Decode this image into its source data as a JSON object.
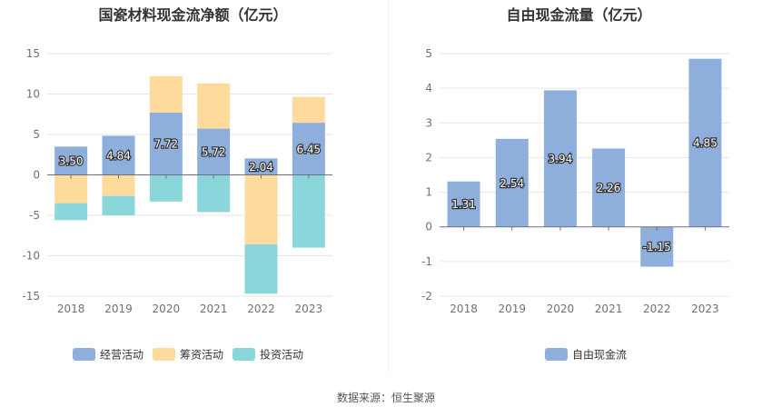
{
  "source_text": "数据来源：恒生聚源",
  "chart_data": [
    {
      "type": "bar",
      "stacked": true,
      "title": "国瓷材料现金流净额（亿元）",
      "categories": [
        "2018",
        "2019",
        "2020",
        "2021",
        "2022",
        "2023"
      ],
      "ylim": [
        -15,
        15
      ],
      "yticks": [
        15,
        10,
        5,
        0,
        -5,
        -10,
        -15
      ],
      "grid": true,
      "legend_position": "bottom",
      "series": [
        {
          "name": "经营活动",
          "color": "#8eaedb",
          "values": [
            3.5,
            4.84,
            7.72,
            5.72,
            2.04,
            6.45
          ],
          "labels": [
            "3.50",
            "4.84",
            "7.72",
            "5.72",
            "2.04",
            "6.45"
          ]
        },
        {
          "name": "筹资活动",
          "color": "#fedb9c",
          "values": [
            -3.5,
            -2.6,
            4.5,
            5.6,
            -8.6,
            3.2
          ]
        },
        {
          "name": "投资活动",
          "color": "#8ad7db",
          "values": [
            -2.1,
            -2.4,
            -3.3,
            -4.6,
            -6.1,
            -9.0
          ]
        }
      ]
    },
    {
      "type": "bar",
      "title": "自由现金流量（亿元）",
      "categories": [
        "2018",
        "2019",
        "2020",
        "2021",
        "2022",
        "2023"
      ],
      "ylim": [
        -2,
        5
      ],
      "yticks": [
        5,
        4,
        3,
        2,
        1,
        0,
        -1,
        -2
      ],
      "grid": true,
      "legend_position": "bottom",
      "series": [
        {
          "name": "自由现金流",
          "color": "#8eaedb",
          "values": [
            1.31,
            2.54,
            3.94,
            2.26,
            -1.15,
            4.85
          ],
          "labels": [
            "1.31",
            "2.54",
            "3.94",
            "2.26",
            "-1.15",
            "4.85"
          ]
        }
      ]
    }
  ]
}
